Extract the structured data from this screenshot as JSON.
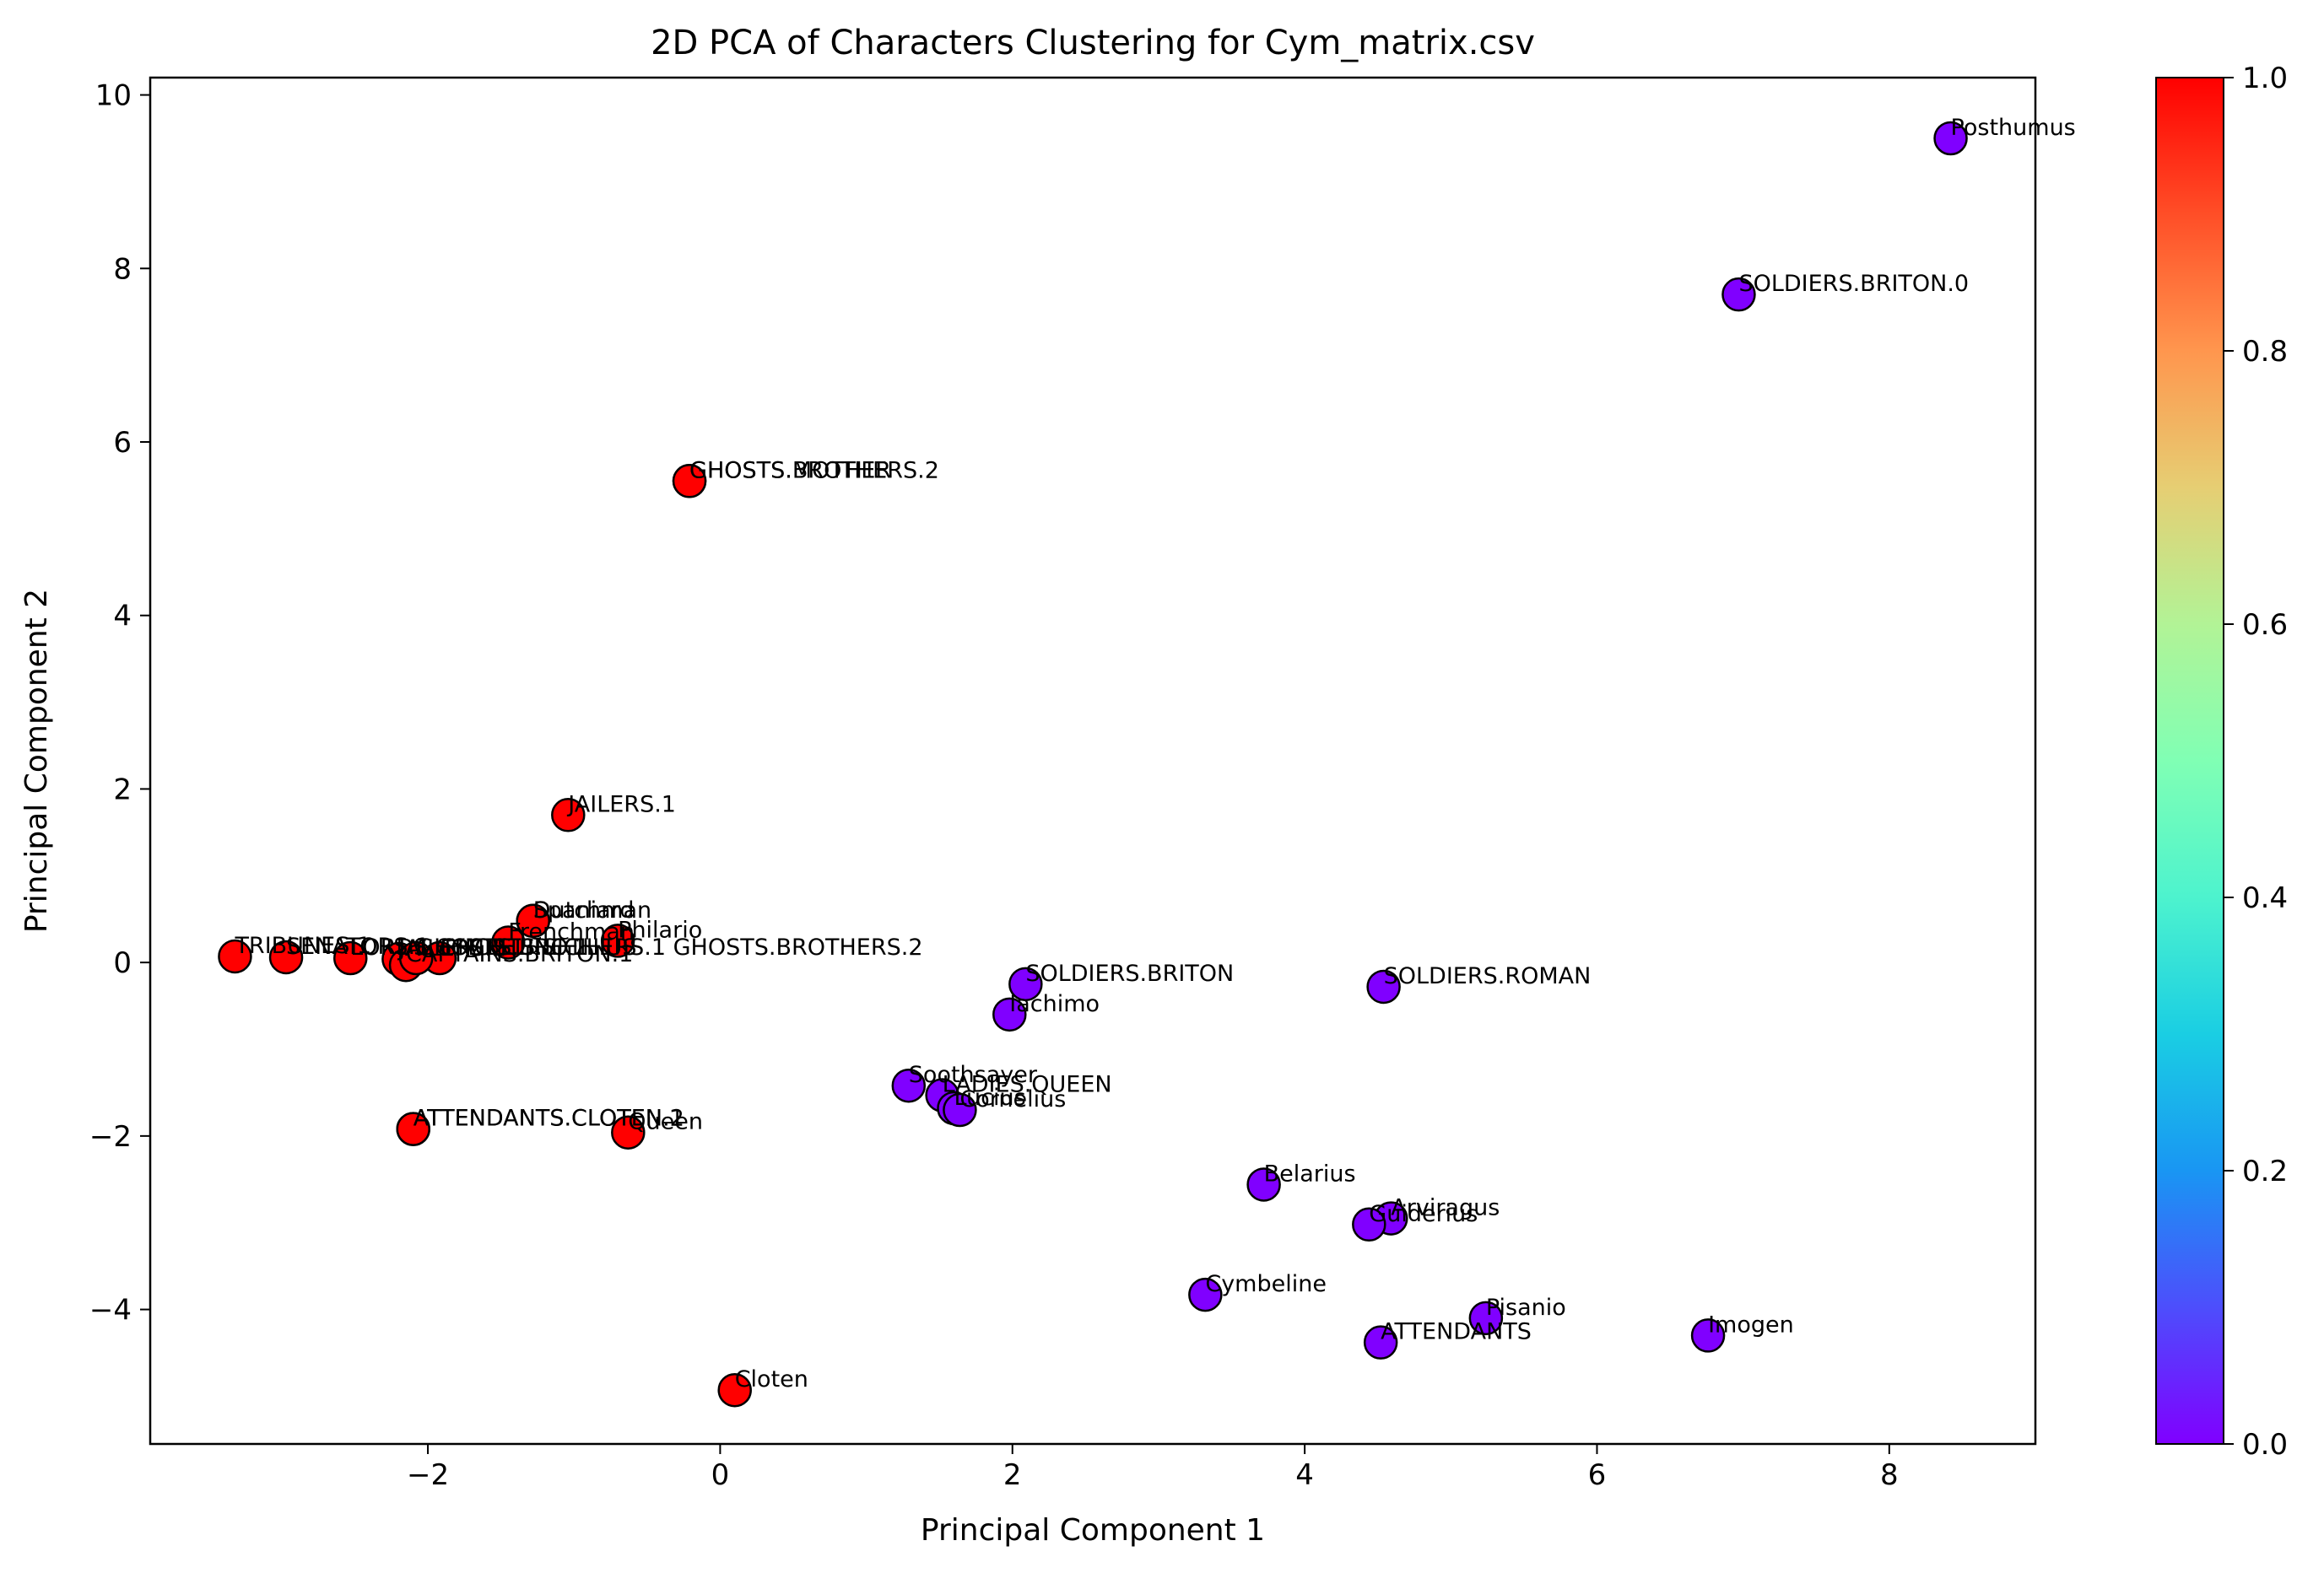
{
  "chart_data": {
    "type": "scatter",
    "title": "2D PCA of Characters Clustering for Cym_matrix.csv",
    "xlabel": "Principal Component 1",
    "ylabel": "Principal Component 2",
    "xlim": [
      -3.9,
      9.0
    ],
    "ylim": [
      -5.55,
      10.2
    ],
    "x_ticks": [
      -2,
      0,
      2,
      4,
      6,
      8
    ],
    "x_tick_labels": [
      "−2",
      "0",
      "2",
      "4",
      "6",
      "8"
    ],
    "y_ticks": [
      -4,
      -2,
      0,
      2,
      4,
      6,
      8,
      10
    ],
    "y_tick_labels": [
      "−4",
      "−2",
      "0",
      "2",
      "4",
      "6",
      "8",
      "10"
    ],
    "grid": false,
    "colormap": "rainbow",
    "colorbar": {
      "range": [
        0,
        1
      ],
      "ticks": [
        0,
        0.2,
        0.4,
        0.6,
        0.8,
        1
      ],
      "tick_labels": [
        "0.0",
        "0.2",
        "0.4",
        "0.6",
        "0.8",
        "1.0"
      ]
    },
    "cluster_colors": {
      "0": "#8000ff",
      "1": "#ff0000"
    },
    "points": [
      {
        "label": "Posthumus",
        "x": 8.42,
        "y": 9.5,
        "cluster": 0
      },
      {
        "label": "SOLDIERS.BRITON.0",
        "x": 6.97,
        "y": 7.7,
        "cluster": 0
      },
      {
        "label": "GHOSTS.BROTHERS.2",
        "x": -0.21,
        "y": 5.55,
        "cluster": 1
      },
      {
        "label": "GHOSTS.MOTHER",
        "x": -0.21,
        "y": 5.55,
        "cluster": 1
      },
      {
        "label": "JAILERS.1",
        "x": -1.04,
        "y": 1.7,
        "cluster": 1
      },
      {
        "label": "Dutchman",
        "x": -1.28,
        "y": 0.48,
        "cluster": 1
      },
      {
        "label": "Spaniard",
        "x": -1.28,
        "y": 0.48,
        "cluster": 1
      },
      {
        "label": "Frenchman",
        "x": -1.45,
        "y": 0.23,
        "cluster": 1
      },
      {
        "label": "Philario",
        "x": -0.7,
        "y": 0.25,
        "cluster": 1
      },
      {
        "label": "TRIBUNES.1",
        "x": -3.32,
        "y": 0.07,
        "cluster": 1
      },
      {
        "label": "SENATORS.1",
        "x": -2.97,
        "y": 0.06,
        "cluster": 1
      },
      {
        "label": "LORDS.CYMBELINE.1",
        "x": -2.53,
        "y": 0.05,
        "cluster": 1
      },
      {
        "label": "JAILERS.2",
        "x": -2.2,
        "y": 0.04,
        "cluster": 1
      },
      {
        "label": "CAPTAINS.BRITON.1",
        "x": -2.15,
        "y": -0.03,
        "cluster": 1
      },
      {
        "label": "GHOSTS.SICILIUS",
        "x": -1.92,
        "y": 0.05,
        "cluster": 1
      },
      {
        "label": "GHOSTS.BROTHERS.1 GHOSTS.BROTHERS.2",
        "x": -2.08,
        "y": 0.05,
        "cluster": 1
      },
      {
        "label": "SOLDIERS.BRITON",
        "x": 2.09,
        "y": -0.25,
        "cluster": 0
      },
      {
        "label": "SOLDIERS.ROMAN",
        "x": 4.54,
        "y": -0.28,
        "cluster": 0
      },
      {
        "label": "Iachimo",
        "x": 1.98,
        "y": -0.6,
        "cluster": 0
      },
      {
        "label": "Soothsayer",
        "x": 1.29,
        "y": -1.42,
        "cluster": 0
      },
      {
        "label": "LADIES.QUEEN",
        "x": 1.52,
        "y": -1.53,
        "cluster": 0
      },
      {
        "label": "Lucius",
        "x": 1.6,
        "y": -1.68,
        "cluster": 0
      },
      {
        "label": "Cornelius",
        "x": 1.64,
        "y": -1.7,
        "cluster": 0
      },
      {
        "label": "ATTENDANTS.CLOTEN.1",
        "x": -2.1,
        "y": -1.92,
        "cluster": 1
      },
      {
        "label": "ATTENDANTS.CLOTEN.2",
        "x": -2.1,
        "y": -1.92,
        "cluster": 1
      },
      {
        "label": "Queen",
        "x": -0.63,
        "y": -1.96,
        "cluster": 1
      },
      {
        "label": "Belarius",
        "x": 3.72,
        "y": -2.56,
        "cluster": 0
      },
      {
        "label": "Arviragus",
        "x": 4.59,
        "y": -2.95,
        "cluster": 0
      },
      {
        "label": "Guiderius",
        "x": 4.44,
        "y": -3.02,
        "cluster": 0
      },
      {
        "label": "Cymbeline",
        "x": 3.32,
        "y": -3.83,
        "cluster": 0
      },
      {
        "label": "Pisanio",
        "x": 5.24,
        "y": -4.1,
        "cluster": 0
      },
      {
        "label": "Imogen",
        "x": 6.76,
        "y": -4.3,
        "cluster": 0
      },
      {
        "label": "ATTENDANTS",
        "x": 4.52,
        "y": -4.38,
        "cluster": 0
      },
      {
        "label": "Cloten",
        "x": 0.1,
        "y": -4.93,
        "cluster": 1
      }
    ]
  }
}
